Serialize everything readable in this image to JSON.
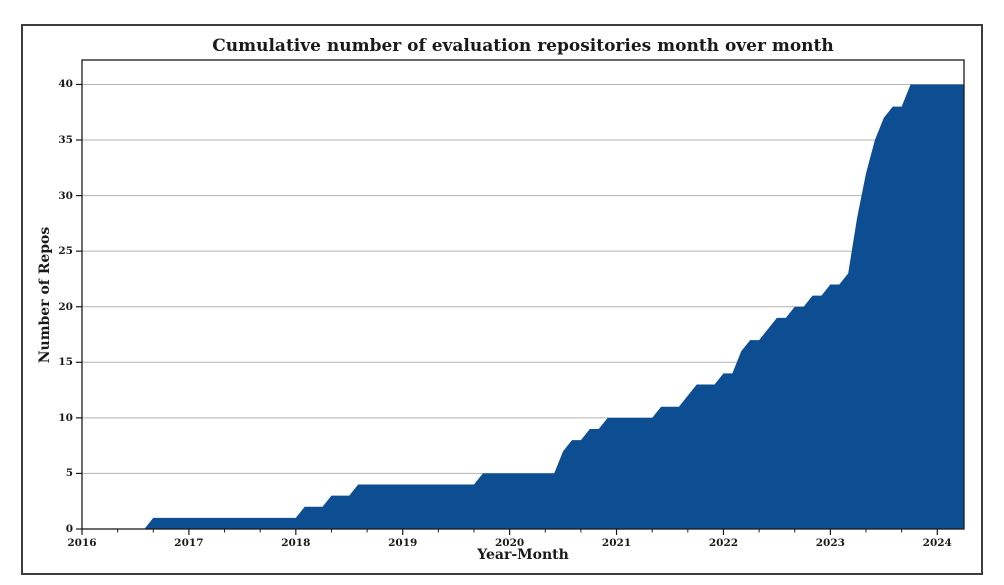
{
  "figure": {
    "title": "Cumulative number of evaluation repositories month over month",
    "xlabel": "Year-Month",
    "ylabel": "Number of Repos"
  },
  "chart_data": {
    "type": "area",
    "title": "Cumulative number of evaluation repositories month over month",
    "xlabel": "Year-Month",
    "ylabel": "Number of Repos",
    "legend": "none",
    "grid": "horizontal",
    "x_start_month": "2016-01",
    "x_end_month": "2024-04",
    "x_tick_labels": [
      "2016",
      "2017",
      "2018",
      "2019",
      "2020",
      "2021",
      "2022",
      "2023",
      "2024"
    ],
    "x_major_tick_months": [
      0,
      12,
      24,
      36,
      48,
      60,
      72,
      84,
      96
    ],
    "x_minor_tick_interval_months": 4,
    "y_tick_labels": [
      "0",
      "5",
      "10",
      "15",
      "20",
      "25",
      "30",
      "35",
      "40"
    ],
    "y_ticks": [
      0,
      5,
      10,
      15,
      20,
      25,
      30,
      35,
      40
    ],
    "ylim": [
      0,
      42.2
    ],
    "colors": {
      "fill": "#0d4d92",
      "grid": "#b3b3b3",
      "spine": "#1a1a1a",
      "text": "#1a1a1a"
    },
    "series": [
      {
        "name": "cumulative-repos",
        "cadence": "monthly",
        "start": "2016-01",
        "values": [
          0,
          0,
          0,
          0,
          0,
          0,
          0,
          0,
          1,
          1,
          1,
          1,
          1,
          1,
          1,
          1,
          1,
          1,
          1,
          1,
          1,
          1,
          1,
          1,
          1,
          2,
          2,
          2,
          3,
          3,
          3,
          4,
          4,
          4,
          4,
          4,
          4,
          4,
          4,
          4,
          4,
          4,
          4,
          4,
          4,
          5,
          5,
          5,
          5,
          5,
          5,
          5,
          5,
          5,
          7,
          8,
          8,
          9,
          9,
          10,
          10,
          10,
          10,
          10,
          10,
          11,
          11,
          11,
          12,
          13,
          13,
          13,
          14,
          14,
          16,
          17,
          17,
          18,
          19,
          19,
          20,
          20,
          21,
          21,
          22,
          22,
          23,
          28,
          32,
          35,
          37,
          38,
          38,
          40,
          40,
          40,
          40,
          40,
          40,
          40
        ]
      }
    ]
  }
}
